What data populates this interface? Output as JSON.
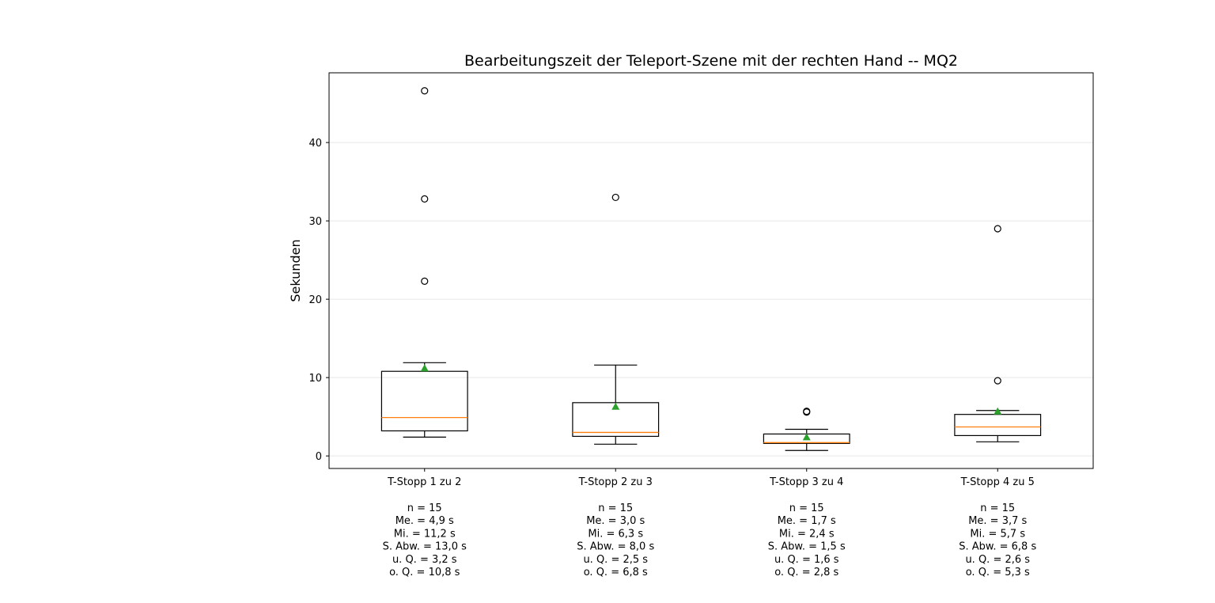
{
  "chart_data": {
    "type": "box",
    "title": "Bearbeitungszeit der Teleport-Szene mit der rechten Hand -- MQ2",
    "xlabel": "",
    "ylabel": "Sekunden",
    "ylim": [
      -1.6,
      48.9
    ],
    "yticks": [
      0,
      10,
      20,
      30,
      40
    ],
    "grid": "y",
    "colors": {
      "median": "#ff7f0e",
      "mean": "#2ca02c",
      "box": "#000000",
      "grid": "#e6e6e6"
    },
    "boxes": [
      {
        "label": "T-Stopp 1 zu 2",
        "whisker_low": 2.4,
        "q1": 3.2,
        "median": 4.9,
        "q3": 10.8,
        "whisker_high": 11.9,
        "mean": 11.2,
        "outliers": [
          22.3,
          32.8,
          46.6
        ],
        "stats": [
          "n = 15",
          "Me. = 4,9 s",
          "Mi. = 11,2 s",
          "S. Abw. = 13,0 s",
          "u. Q. = 3,2 s",
          "o. Q. = 10,8 s"
        ]
      },
      {
        "label": "T-Stopp 2 zu 3",
        "whisker_low": 1.5,
        "q1": 2.5,
        "median": 3.0,
        "q3": 6.8,
        "whisker_high": 11.6,
        "mean": 6.3,
        "outliers": [
          33.0
        ],
        "stats": [
          "n = 15",
          "Me. = 3,0 s",
          "Mi. = 6,3 s",
          "S. Abw. = 8,0 s",
          "u. Q. = 2,5 s",
          "o. Q. = 6,8 s"
        ]
      },
      {
        "label": "T-Stopp 3 zu 4",
        "whisker_low": 0.7,
        "q1": 1.6,
        "median": 1.7,
        "q3": 2.8,
        "whisker_high": 3.4,
        "mean": 2.4,
        "outliers": [
          5.6,
          5.7
        ],
        "stats": [
          "n = 15",
          "Me. = 1,7 s",
          "Mi. = 2,4 s",
          "S. Abw. = 1,5 s",
          "u. Q. = 1,6 s",
          "o. Q. = 2,8 s"
        ]
      },
      {
        "label": "T-Stopp 4 zu 5",
        "whisker_low": 1.8,
        "q1": 2.6,
        "median": 3.7,
        "q3": 5.3,
        "whisker_high": 5.8,
        "mean": 5.7,
        "outliers": [
          9.6,
          29.0
        ],
        "stats": [
          "n = 15",
          "Me. = 3,7 s",
          "Mi. = 5,7 s",
          "S. Abw. = 6,8 s",
          "u. Q. = 2,6 s",
          "o. Q. = 5,3 s"
        ]
      }
    ]
  }
}
